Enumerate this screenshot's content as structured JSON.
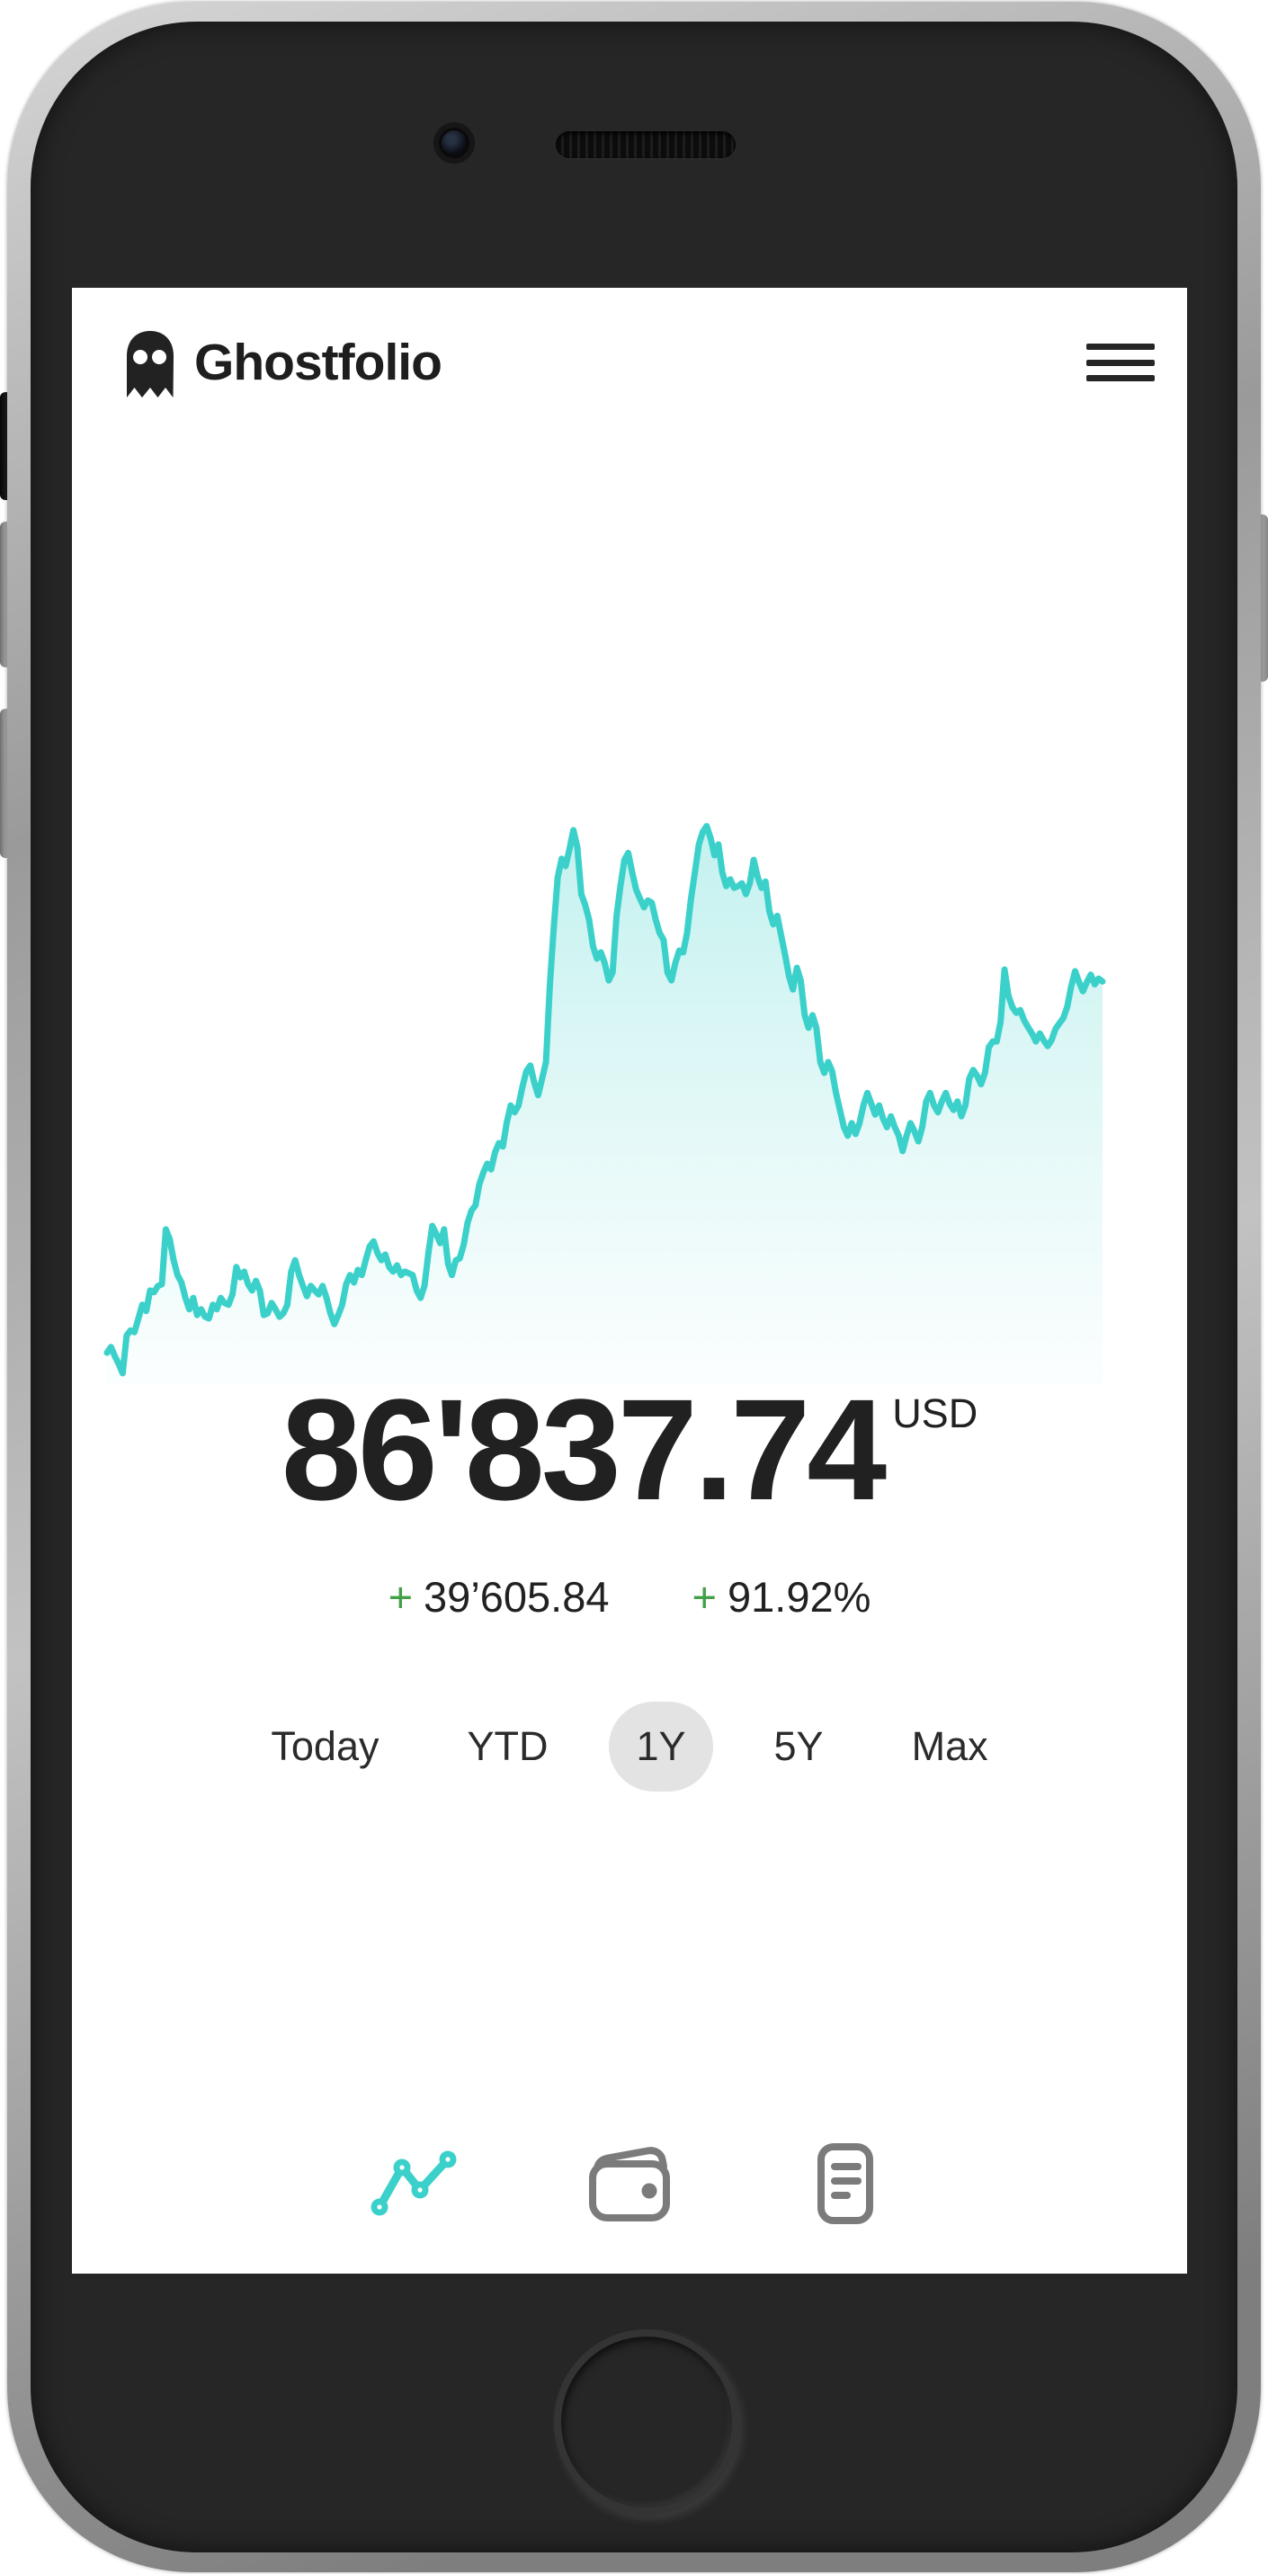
{
  "header": {
    "app_name": "Ghostfolio",
    "logo_icon": "ghost-logo-icon",
    "menu_icon": "hamburger-menu-icon"
  },
  "portfolio": {
    "total_value": "86'837.74",
    "currency": "USD",
    "change_sign": "+",
    "change_absolute": "39’605.84",
    "change_percent": "91.92%"
  },
  "range_selector": {
    "options": [
      {
        "label": "Today",
        "selected": false
      },
      {
        "label": "YTD",
        "selected": false
      },
      {
        "label": "1Y",
        "selected": true
      },
      {
        "label": "5Y",
        "selected": false
      },
      {
        "label": "Max",
        "selected": false
      }
    ]
  },
  "bottom_nav": {
    "items": [
      {
        "name": "home",
        "icon": "analytics-icon",
        "active": true
      },
      {
        "name": "portfolio",
        "icon": "wallet-icon",
        "active": false
      },
      {
        "name": "transactions",
        "icon": "reader-icon",
        "active": false
      }
    ]
  },
  "colors": {
    "accent_teal": "#3bd1ca",
    "positive_green": "#43a047",
    "text_primary": "#212121",
    "pill_bg": "#e3e3e3",
    "nav_inactive": "#7b7b7b",
    "phone_body": "#262626"
  },
  "chart_data": {
    "type": "area",
    "title": "",
    "xlabel": "",
    "ylabel": "",
    "x_range_selected": "1Y",
    "axes_visible": false,
    "grid": false,
    "legend": false,
    "end_value": 86837.74,
    "ylim": [
      43881,
      104813
    ],
    "line_color": "#3bd1ca",
    "fill": "vertical gradient rgba(59,209,202,0.30) to rgba(59,209,202,0.02)",
    "series": [
      {
        "name": "portfolio-value-usd-estimated",
        "values": [
          47232,
          47842,
          46867,
          46014,
          45039,
          49060,
          49609,
          49426,
          50888,
          52351,
          51680,
          53874,
          53691,
          54361,
          54544,
          60394,
          59358,
          57103,
          55519,
          54727,
          53082,
          51863,
          53082,
          51254,
          51863,
          51071,
          50888,
          52351,
          51863,
          53082,
          52533,
          52351,
          53447,
          56372,
          55275,
          55885,
          54544,
          53874,
          54910,
          53874,
          51254,
          51437,
          52533,
          51863,
          51071,
          51437,
          52351,
          55885,
          57103,
          55519,
          54361,
          53265,
          54361,
          53874,
          53447,
          54361,
          53082,
          51437,
          50279,
          51254,
          52351,
          54544,
          55519,
          54727,
          56067,
          55519,
          57103,
          58566,
          59114,
          57895,
          57103,
          57713,
          56372,
          55885,
          56555,
          55519,
          55885,
          55702,
          55519,
          53874,
          53082,
          54361,
          57895,
          60759,
          59906,
          58931,
          60394,
          56738,
          55519,
          57103,
          57286,
          58748,
          61125,
          62404,
          62953,
          65207,
          66426,
          67401,
          66791,
          68619,
          69594,
          69229,
          71788,
          73616,
          72885,
          73616,
          75627,
          77272,
          77881,
          76053,
          74713,
          76480,
          78247,
          86533,
          92627,
          97989,
          99939,
          99147,
          100975,
          102986,
          101157,
          96161,
          95003,
          93419,
          90616,
          89275,
          89945,
          88788,
          86960,
          87813,
          93845,
          97014,
          99817,
          100548,
          98476,
          96648,
          95673,
          94759,
          95490,
          95247,
          93419,
          92017,
          91286,
          87813,
          86960,
          88788,
          90128,
          89945,
          92017,
          95673,
          98476,
          101462,
          102803,
          103412,
          102132,
          100304,
          101462,
          98476,
          97014,
          97745,
          96831,
          97014,
          97319,
          96161,
          97319,
          99817,
          97989,
          96831,
          97501,
          94333,
          92931,
          93845,
          91774,
          89702,
          87447,
          85985,
          88300,
          86960,
          83243,
          81903,
          83243,
          81903,
          78247,
          77089,
          78247,
          77272,
          74956,
          73128,
          71300,
          70386,
          71727,
          70569,
          71727,
          73616,
          74956,
          73799,
          72641,
          73616,
          72214,
          71300,
          72458,
          71300,
          70386,
          68741,
          70386,
          71727,
          70874,
          69777,
          71300,
          74042,
          74956,
          73616,
          72885,
          74042,
          74956,
          73799,
          73128,
          74042,
          72458,
          73616,
          76480,
          77394,
          76784,
          75870,
          77089,
          79831,
          80440,
          80440,
          82573,
          88117,
          85315,
          84096,
          83487,
          83791,
          82695,
          81964,
          81293,
          80440,
          81293,
          80562,
          79953,
          80562,
          81781,
          82390,
          82938,
          84157,
          86289,
          87934,
          86777,
          85802,
          86777,
          87569,
          86533,
          87143,
          86838
        ]
      }
    ]
  }
}
